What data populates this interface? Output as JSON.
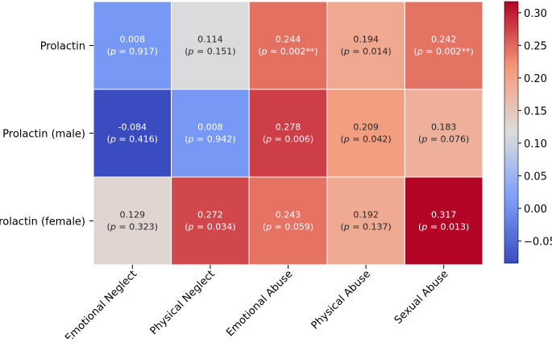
{
  "chart_data": {
    "type": "heatmap",
    "title": "",
    "rows": [
      "Prolactin",
      "Prolactin (male)",
      "Prolactin (female)"
    ],
    "columns": [
      "Emotional Neglect",
      "Physical Neglect",
      "Emotional Abuse",
      "Physical Abuse",
      "Sexual Abuse"
    ],
    "values": [
      [
        0.008,
        0.114,
        0.244,
        0.194,
        0.242
      ],
      [
        -0.084,
        0.008,
        0.278,
        0.209,
        0.183
      ],
      [
        0.129,
        0.272,
        0.243,
        0.192,
        0.317
      ]
    ],
    "value_labels": [
      [
        "0.008",
        "0.114",
        "0.244",
        "0.194",
        "0.242"
      ],
      [
        "-0.084",
        "0.008",
        "0.278",
        "0.209",
        "0.183"
      ],
      [
        "0.129",
        "0.272",
        "0.243",
        "0.192",
        "0.317"
      ]
    ],
    "p_labels": [
      [
        "(p = 0.917)",
        "(p = 0.151)",
        "(p = 0.002**)",
        "(p = 0.014)",
        "(p = 0.002**)"
      ],
      [
        "(p = 0.416)",
        "(p = 0.942)",
        "(p = 0.006)",
        "(p = 0.042)",
        "(p = 0.076)"
      ],
      [
        "(p = 0.323)",
        "(p = 0.034)",
        "(p = 0.059)",
        "(p = 0.137)",
        "(p = 0.013)"
      ]
    ],
    "colormap": "coolwarm",
    "vmin": -0.084,
    "vmax": 0.317,
    "colorbar_ticks": [
      -0.05,
      0.0,
      0.05,
      0.1,
      0.15,
      0.2,
      0.25,
      0.3
    ],
    "colorbar_tick_labels": [
      "−0.05",
      "0.00",
      "0.05",
      "0.10",
      "0.15",
      "0.20",
      "0.25",
      "0.30"
    ]
  }
}
